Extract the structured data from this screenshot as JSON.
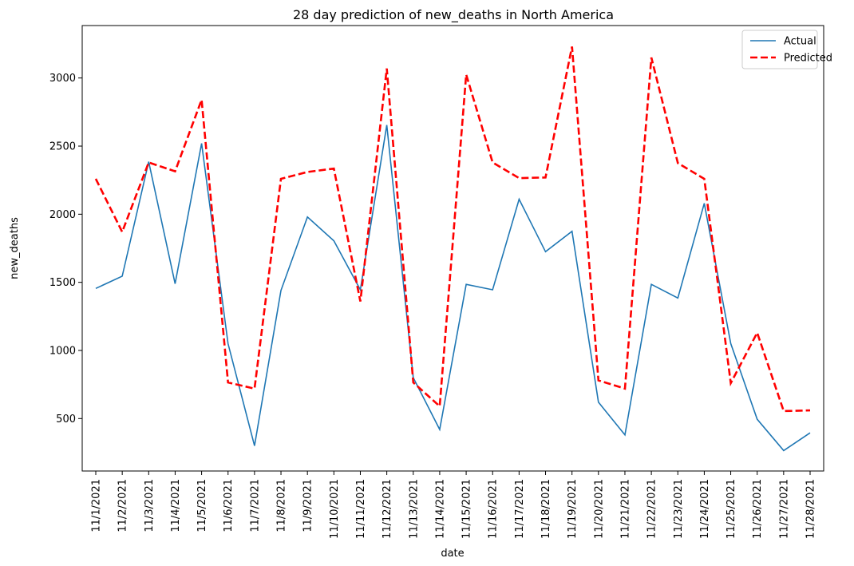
{
  "chart_data": {
    "type": "line",
    "title": "28 day prediction of new_deaths in North America",
    "xlabel": "date",
    "ylabel": "new_deaths",
    "categories": [
      "11/1/2021",
      "11/2/2021",
      "11/3/2021",
      "11/4/2021",
      "11/5/2021",
      "11/6/2021",
      "11/7/2021",
      "11/8/2021",
      "11/9/2021",
      "11/10/2021",
      "11/11/2021",
      "11/12/2021",
      "11/13/2021",
      "11/14/2021",
      "11/15/2021",
      "11/16/2021",
      "11/17/2021",
      "11/18/2021",
      "11/19/2021",
      "11/20/2021",
      "11/21/2021",
      "11/22/2021",
      "11/23/2021",
      "11/24/2021",
      "11/25/2021",
      "11/26/2021",
      "11/27/2021",
      "11/28/2021"
    ],
    "ylim": [
      115,
      3385
    ],
    "yticks": [
      500,
      1000,
      1500,
      2000,
      2500,
      3000
    ],
    "grid": false,
    "legend": "top-right",
    "series": [
      {
        "name": "Actual",
        "color": "#1f77b4",
        "style": "solid",
        "values": [
          1455,
          1545,
          2385,
          1490,
          2520,
          1050,
          300,
          1440,
          1980,
          1805,
          1445,
          2655,
          800,
          420,
          1485,
          1445,
          2110,
          1725,
          1875,
          620,
          380,
          1485,
          1385,
          2080,
          1050,
          495,
          265,
          395
        ]
      },
      {
        "name": "Predicted",
        "color": "#ff0000",
        "style": "dashed",
        "values": [
          2260,
          1870,
          2380,
          2315,
          2840,
          765,
          720,
          2260,
          2310,
          2335,
          1360,
          3070,
          765,
          590,
          3025,
          2380,
          2265,
          2270,
          3230,
          780,
          720,
          3150,
          2375,
          2260,
          760,
          1130,
          555,
          560
        ]
      }
    ]
  }
}
